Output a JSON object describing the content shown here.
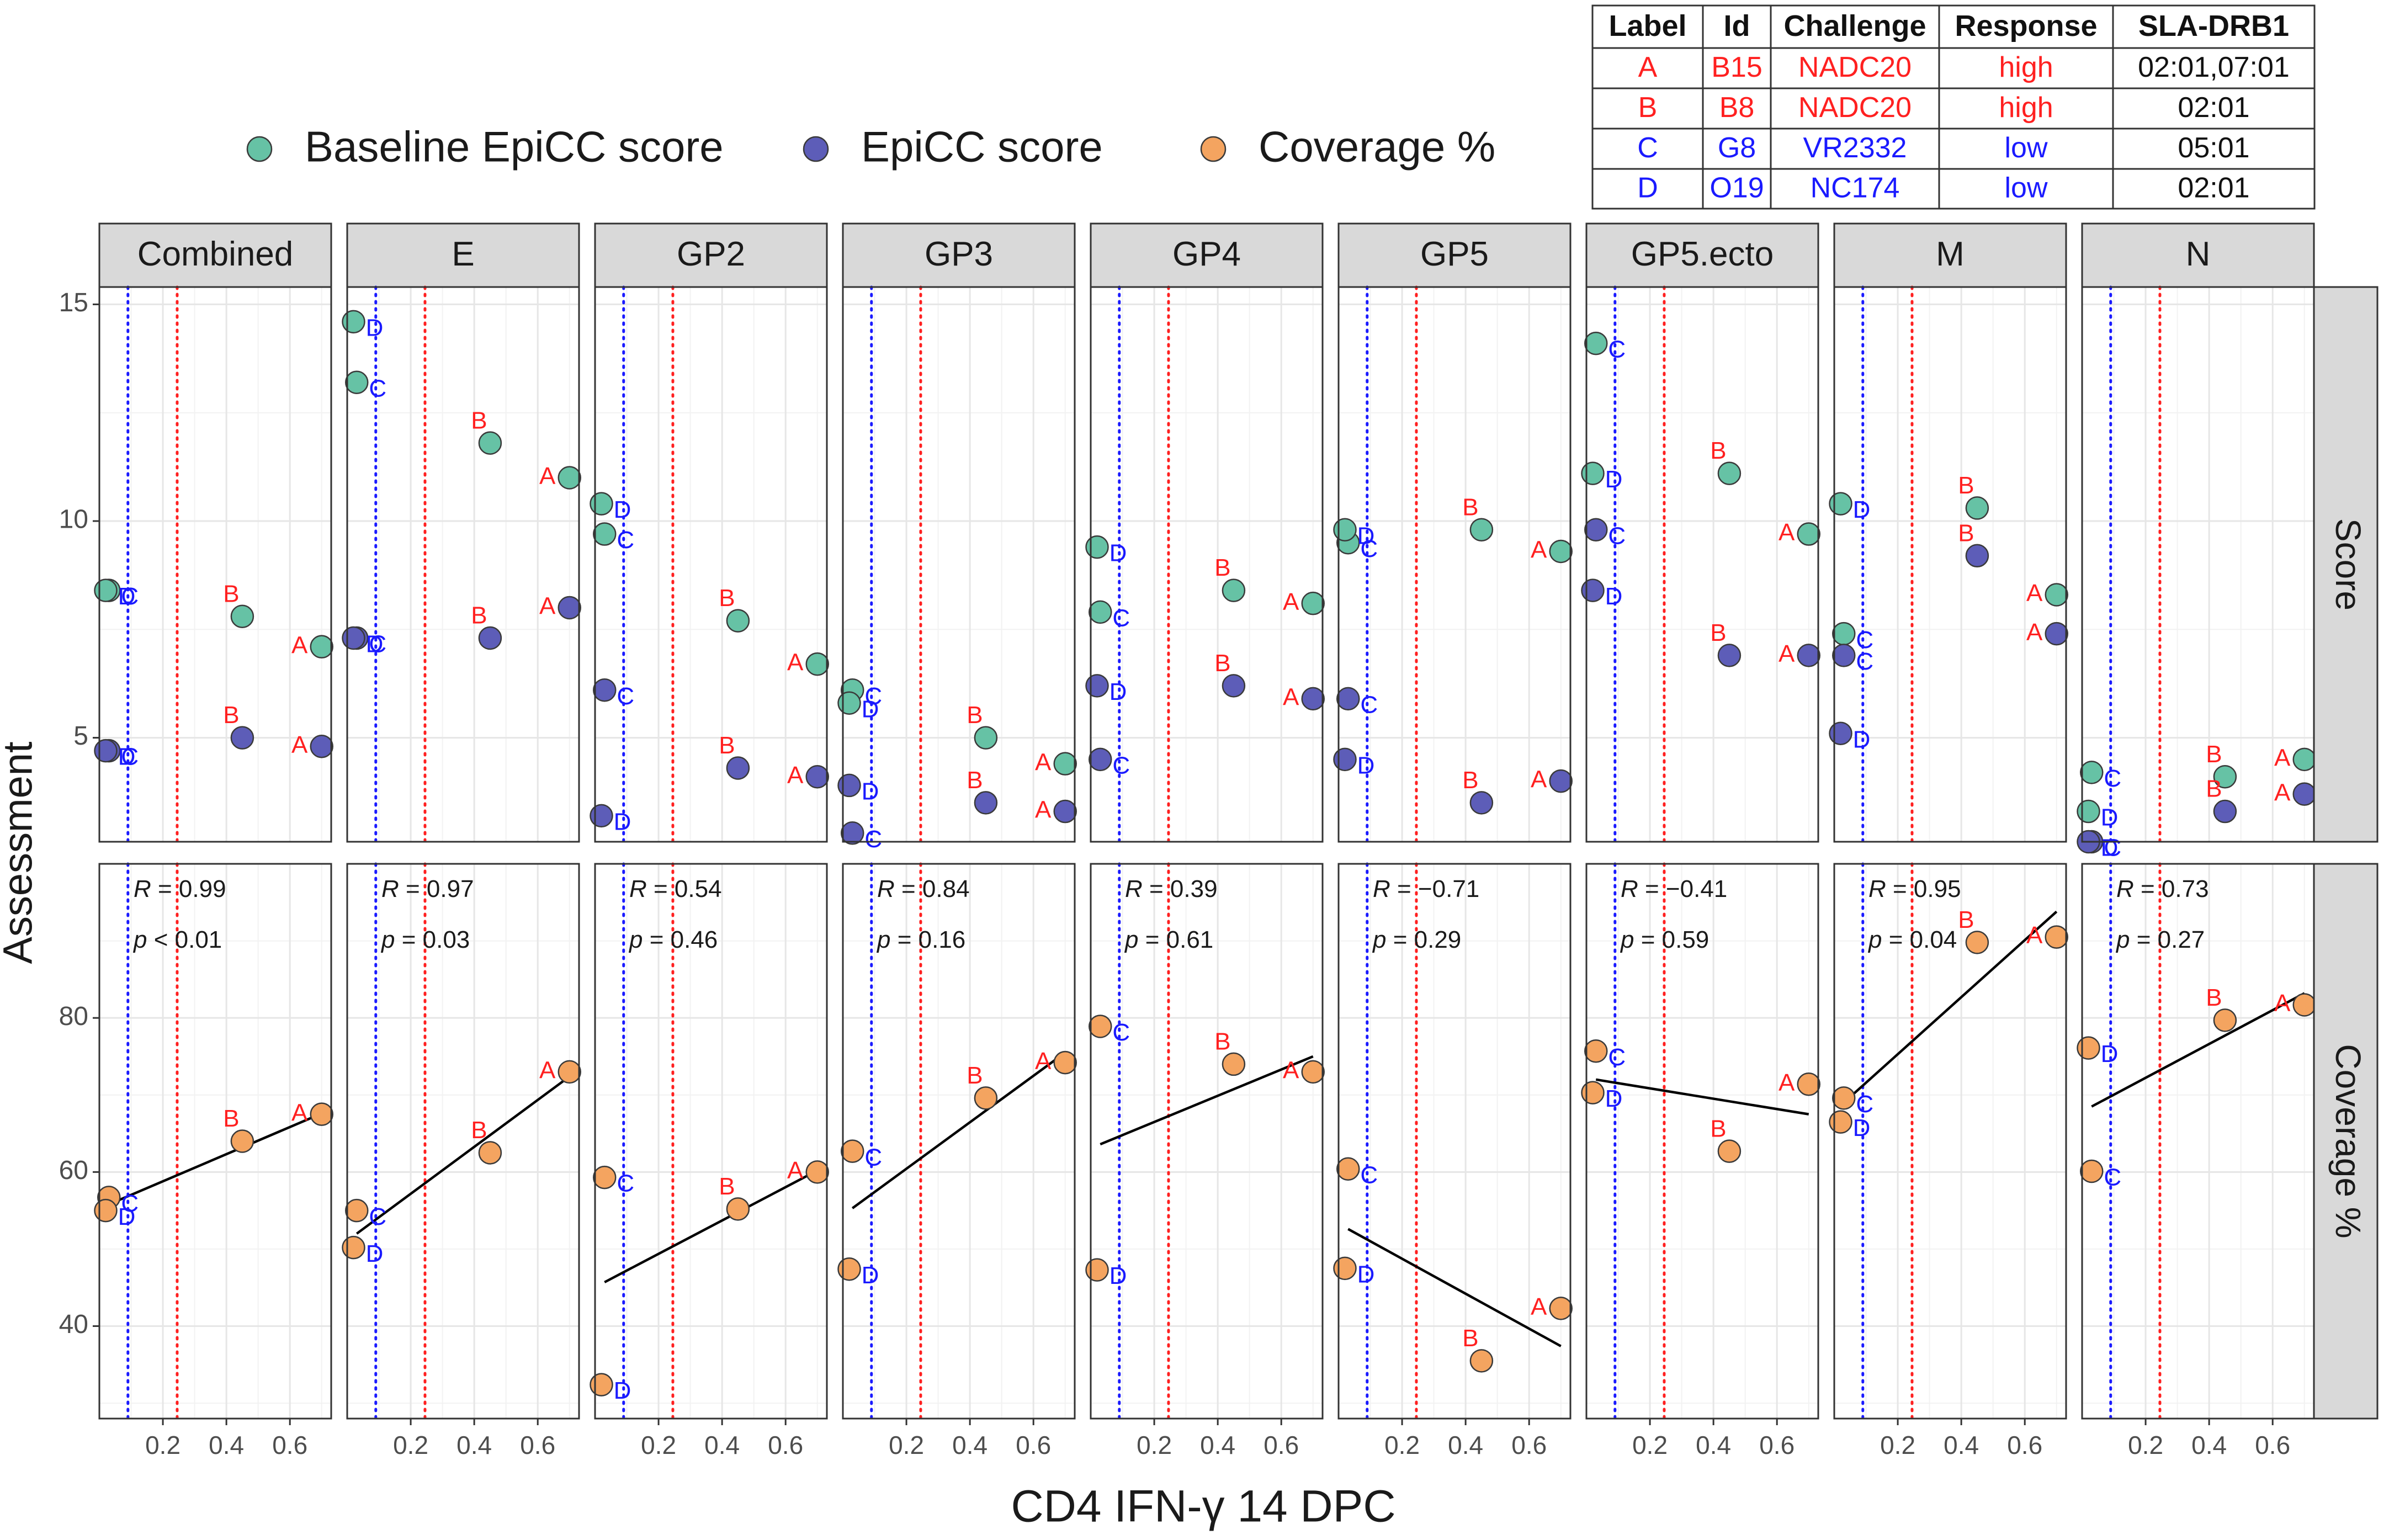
{
  "chart_data": {
    "type": "scatter",
    "layout": "facet_grid",
    "xlabel": "CD4 IFN-γ 14 DPC",
    "ylabel": "Assessment",
    "x_ticks": [
      "0.2",
      "0.4",
      "0.6"
    ],
    "x_tick_values": [
      0.2,
      0.4,
      0.6
    ],
    "xlim": [
      0.0,
      0.73
    ],
    "proteins": [
      "Combined",
      "E",
      "GP2",
      "GP3",
      "GP4",
      "GP5",
      "GP5.ecto",
      "M",
      "N"
    ],
    "rows": [
      {
        "name": "Score",
        "ylim": [
          2.6,
          15.4
        ],
        "y_ticks": [
          5,
          10,
          15
        ],
        "y_tick_labels": [
          "5",
          "10",
          "15"
        ]
      },
      {
        "name": "Coverage %",
        "ylim": [
          28,
          100
        ],
        "y_ticks": [
          40,
          60,
          80
        ],
        "y_tick_labels": [
          "40",
          "60",
          "80"
        ]
      }
    ],
    "vlines": [
      {
        "x": 0.09,
        "color": "#1a1aff",
        "style": "dotted"
      },
      {
        "x": 0.245,
        "color": "#ff2020",
        "style": "dotted"
      }
    ],
    "legend": {
      "position": "top",
      "entries": [
        {
          "label": "Baseline EpiCC score",
          "color": "#66c2a5"
        },
        {
          "label": "EpiCC score",
          "color": "#5d5db8"
        },
        {
          "label": "Coverage %",
          "color": "#f4a460"
        }
      ]
    },
    "animals": [
      {
        "label": "A",
        "id": "B15",
        "challenge": "NADC20",
        "response": "high",
        "sla_drb1": "02:01,07:01",
        "color": "#ff2020",
        "x": 0.7
      },
      {
        "label": "B",
        "id": "B8",
        "challenge": "NADC20",
        "response": "high",
        "sla_drb1": "02:01",
        "color": "#ff2020",
        "x": 0.45
      },
      {
        "label": "C",
        "id": "G8",
        "challenge": "VR2332",
        "response": "low",
        "sla_drb1": "05:01",
        "color": "#1a1aff",
        "x": 0.03
      },
      {
        "label": "D",
        "id": "O19",
        "challenge": "NC174",
        "response": "low",
        "sla_drb1": "02:01",
        "color": "#1a1aff",
        "x": 0.02
      }
    ],
    "table": {
      "headers": [
        "Label",
        "Id",
        "Challenge",
        "Response",
        "SLA-DRB1"
      ],
      "rows": [
        [
          "A",
          "B15",
          "NADC20",
          "high",
          "02:01,07:01"
        ],
        [
          "B",
          "B8",
          "NADC20",
          "high",
          "02:01"
        ],
        [
          "C",
          "G8",
          "VR2332",
          "low",
          "05:01"
        ],
        [
          "D",
          "O19",
          "NC174",
          "low",
          "02:01"
        ]
      ]
    },
    "series": {
      "baseline": {
        "Combined": {
          "A": 7.1,
          "B": 7.8,
          "C": 8.4,
          "D": 8.4
        },
        "E": {
          "A": 11.0,
          "B": 11.8,
          "C": 13.2,
          "D": 14.6
        },
        "GP2": {
          "A": 6.7,
          "B": 7.7,
          "C": 9.7,
          "D": 10.4
        },
        "GP3": {
          "A": 4.4,
          "B": 5.0,
          "C": 6.1,
          "D": 5.8
        },
        "GP4": {
          "A": 8.1,
          "B": 8.4,
          "C": 7.9,
          "D": 9.4
        },
        "GP5": {
          "A": 9.3,
          "B": 9.8,
          "C": 9.5,
          "D": 9.8
        },
        "GP5.ecto": {
          "A": 9.7,
          "B": 11.1,
          "C": 14.1,
          "D": 11.1
        },
        "M": {
          "A": 8.3,
          "B": 10.3,
          "C": 7.4,
          "D": 10.4
        },
        "N": {
          "A": 4.5,
          "B": 4.1,
          "C": 4.2,
          "D": 3.3
        }
      },
      "epicc": {
        "Combined": {
          "A": 4.8,
          "B": 5.0,
          "C": 4.7,
          "D": 4.7
        },
        "E": {
          "A": 8.0,
          "B": 7.3,
          "C": 7.3,
          "D": 7.3
        },
        "GP2": {
          "A": 4.1,
          "B": 4.3,
          "C": 6.1,
          "D": 3.2
        },
        "GP3": {
          "A": 3.3,
          "B": 3.5,
          "C": 2.8,
          "D": 3.9
        },
        "GP4": {
          "A": 5.9,
          "B": 6.2,
          "C": 4.5,
          "D": 6.2
        },
        "GP5": {
          "A": 4.0,
          "B": 3.5,
          "C": 5.9,
          "D": 4.5
        },
        "GP5.ecto": {
          "A": 6.9,
          "B": 6.9,
          "C": 9.8,
          "D": 8.4
        },
        "M": {
          "A": 7.4,
          "B": 9.2,
          "C": 6.9,
          "D": 5.1
        },
        "N": {
          "A": 3.7,
          "B": 3.3,
          "C": 2.6,
          "D": 2.6
        }
      },
      "coverage": {
        "Combined": {
          "A": 67.5,
          "B": 64.0,
          "C": 56.7,
          "D": 55.0
        },
        "E": {
          "A": 73.0,
          "B": 62.5,
          "C": 55.0,
          "D": 50.2
        },
        "GP2": {
          "A": 60.0,
          "B": 55.2,
          "C": 59.3,
          "D": 32.4
        },
        "GP3": {
          "A": 74.2,
          "B": 69.6,
          "C": 62.7,
          "D": 47.4
        },
        "GP4": {
          "A": 73.0,
          "B": 74.0,
          "C": 78.9,
          "D": 47.3
        },
        "GP5": {
          "A": 42.3,
          "B": 35.5,
          "C": 60.4,
          "D": 47.5
        },
        "GP5.ecto": {
          "A": 71.4,
          "B": 62.7,
          "C": 75.7,
          "D": 70.3
        },
        "M": {
          "A": 90.5,
          "B": 89.8,
          "C": 69.6,
          "D": 66.5
        },
        "N": {
          "A": 81.7,
          "B": 79.7,
          "C": 60.1,
          "D": 76.1
        }
      }
    },
    "regression": {
      "Combined": {
        "R": "0.99",
        "p": "< 0.01",
        "x0": 0.03,
        "y0": 55.8,
        "x1": 0.7,
        "y1": 67.6
      },
      "E": {
        "R": "0.97",
        "p": "= 0.03",
        "x0": 0.03,
        "y0": 52.0,
        "x1": 0.7,
        "y1": 72.4
      },
      "GP2": {
        "R": "0.54",
        "p": "= 0.46",
        "x0": 0.03,
        "y0": 45.7,
        "x1": 0.7,
        "y1": 60.2
      },
      "GP3": {
        "R": "0.84",
        "p": "= 0.16",
        "x0": 0.03,
        "y0": 55.3,
        "x1": 0.7,
        "y1": 75.5
      },
      "GP4": {
        "R": "0.39",
        "p": "= 0.61",
        "x0": 0.03,
        "y0": 63.6,
        "x1": 0.7,
        "y1": 75.0
      },
      "GP5": {
        "R": "−0.71",
        "p": "= 0.29",
        "x0": 0.03,
        "y0": 52.6,
        "x1": 0.7,
        "y1": 37.4
      },
      "GP5.ecto": {
        "R": "−0.41",
        "p": "= 0.59",
        "x0": 0.03,
        "y0": 72.0,
        "x1": 0.7,
        "y1": 67.5
      },
      "M": {
        "R": "0.95",
        "p": "= 0.04",
        "x0": 0.03,
        "y0": 69.0,
        "x1": 0.7,
        "y1": 93.8
      },
      "N": {
        "R": "0.73",
        "p": "= 0.27",
        "x0": 0.03,
        "y0": 68.5,
        "x1": 0.7,
        "y1": 83.2
      }
    }
  }
}
